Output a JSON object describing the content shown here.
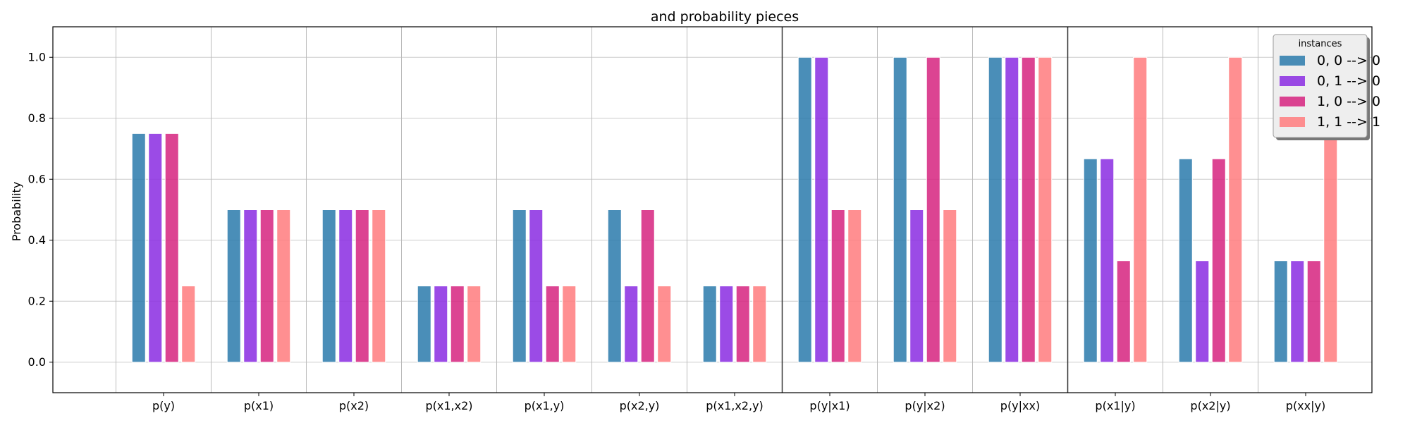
{
  "chart_data": {
    "type": "bar",
    "title": "and probability pieces",
    "xlabel": "",
    "ylabel": "Probability",
    "ylim": [
      -0.1,
      1.1
    ],
    "yticks": [
      "0.0",
      "0.2",
      "0.4",
      "0.6",
      "0.8",
      "1.0"
    ],
    "grid": true,
    "legend": {
      "title": "instances",
      "placement": "top-right"
    },
    "categories": [
      "p(y)",
      "p(x1)",
      "p(x2)",
      "p(x1,x2)",
      "p(x1,y)",
      "p(x2,y)",
      "p(x1,x2,y)",
      "p(y|x1)",
      "p(y|x2)",
      "p(y|xx)",
      "p(x1|y)",
      "p(x2|y)",
      "p(xx|y)"
    ],
    "series": [
      {
        "name": "0, 0 --> 0",
        "color": "#2a7aab",
        "values": [
          0.75,
          0.5,
          0.5,
          0.25,
          0.5,
          0.5,
          0.25,
          1.0,
          1.0,
          1.0,
          0.667,
          0.667,
          0.333
        ]
      },
      {
        "name": "0, 1 --> 0",
        "color": "#8a2be2",
        "values": [
          0.75,
          0.5,
          0.5,
          0.25,
          0.5,
          0.25,
          0.25,
          1.0,
          0.5,
          1.0,
          0.667,
          0.333,
          0.333
        ]
      },
      {
        "name": "1, 0 --> 0",
        "color": "#d6237f",
        "values": [
          0.75,
          0.5,
          0.5,
          0.25,
          0.25,
          0.5,
          0.25,
          0.5,
          1.0,
          1.0,
          0.333,
          0.667,
          0.333
        ]
      },
      {
        "name": "1, 1 --> 1",
        "color": "#ff7b7e",
        "values": [
          0.25,
          0.5,
          0.5,
          0.25,
          0.25,
          0.25,
          0.25,
          0.5,
          0.5,
          1.0,
          1.0,
          1.0,
          1.0
        ]
      }
    ]
  }
}
